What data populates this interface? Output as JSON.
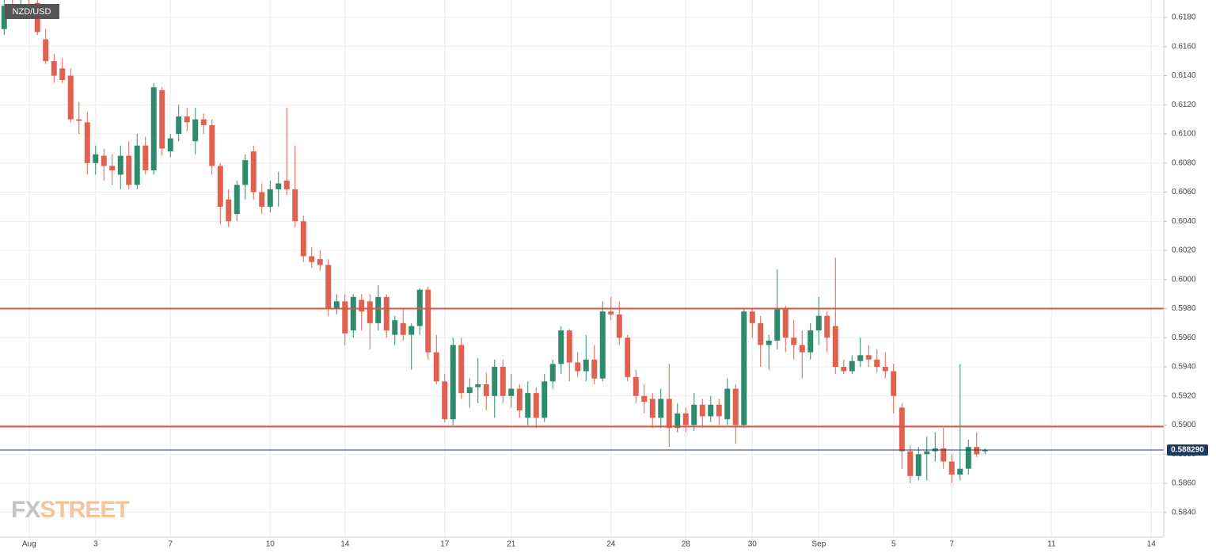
{
  "chart_data": {
    "type": "candlestick",
    "title": "NZD/USD",
    "watermark": [
      "FX",
      "STREET"
    ],
    "up_color": "#2e8b6e",
    "down_color": "#e0614f",
    "grid": true,
    "ylim": [
      0.5823,
      0.6192
    ],
    "yticks": [
      {
        "value": 0.584,
        "label": "0.5840"
      },
      {
        "value": 0.586,
        "label": "0.5860"
      },
      {
        "value": 0.588,
        "label": "0.5880"
      },
      {
        "value": 0.59,
        "label": "0.5900"
      },
      {
        "value": 0.592,
        "label": "0.5920"
      },
      {
        "value": 0.594,
        "label": "0.5940"
      },
      {
        "value": 0.596,
        "label": "0.5960"
      },
      {
        "value": 0.598,
        "label": "0.5980"
      },
      {
        "value": 0.6,
        "label": "0.6000"
      },
      {
        "value": 0.602,
        "label": "0.6020"
      },
      {
        "value": 0.604,
        "label": "0.6040"
      },
      {
        "value": 0.606,
        "label": "0.6060"
      },
      {
        "value": 0.608,
        "label": "0.6080"
      },
      {
        "value": 0.61,
        "label": "0.6100"
      },
      {
        "value": 0.612,
        "label": "0.6120"
      },
      {
        "value": 0.614,
        "label": "0.6140"
      },
      {
        "value": 0.616,
        "label": "0.6160"
      },
      {
        "value": 0.618,
        "label": "0.6180"
      }
    ],
    "hlines": [
      {
        "value": 0.598,
        "color": "#d9544a"
      },
      {
        "value": 0.5899,
        "color": "#d9544a"
      }
    ],
    "last_price": {
      "value": 0.58829,
      "label": "0.588290",
      "color": "#1c3a5e"
    },
    "categories": [
      null,
      null,
      null,
      "Aug",
      null,
      null,
      null,
      null,
      null,
      null,
      null,
      "3",
      null,
      null,
      null,
      null,
      null,
      null,
      null,
      null,
      "7",
      null,
      null,
      null,
      null,
      null,
      null,
      null,
      null,
      null,
      null,
      null,
      "10",
      null,
      null,
      null,
      null,
      null,
      null,
      null,
      null,
      "14",
      null,
      null,
      null,
      null,
      null,
      null,
      null,
      null,
      null,
      null,
      null,
      "17",
      null,
      null,
      null,
      null,
      null,
      null,
      null,
      "21",
      null,
      null,
      null,
      null,
      null,
      null,
      null,
      null,
      null,
      null,
      null,
      "24",
      null,
      null,
      null,
      null,
      null,
      null,
      null,
      null,
      "28",
      null,
      null,
      null,
      null,
      null,
      null,
      null,
      "30",
      null,
      null,
      null,
      null,
      null,
      null,
      null,
      "Sep",
      null,
      null,
      null,
      null,
      null,
      null,
      null,
      null,
      "5",
      null,
      null,
      null,
      null,
      null,
      null,
      "7",
      null,
      null,
      null,
      null,
      null,
      null,
      null,
      null,
      null,
      null,
      null,
      "11",
      null,
      null,
      null,
      null,
      null,
      null,
      null,
      null,
      null,
      null,
      null,
      "14",
      null
    ],
    "open": [
      0.6172,
      0.6188,
      0.6186,
      0.6189,
      0.619,
      0.6165,
      0.615,
      0.6145,
      0.614,
      0.611,
      0.6108,
      0.608,
      0.6085,
      0.6078,
      0.6072,
      0.6085,
      0.6065,
      0.6092,
      0.6075,
      0.613,
      0.6088,
      0.61,
      0.6112,
      0.6095,
      0.611,
      0.6106,
      0.6078,
      0.6055,
      0.6045,
      0.6065,
      0.6088,
      0.606,
      0.605,
      0.6062,
      0.6068,
      0.6062,
      0.604,
      0.6016,
      0.6014,
      0.601,
      0.598,
      0.5985,
      0.5965,
      0.5986,
      0.5985,
      0.597,
      0.5988,
      0.5962,
      0.597,
      0.5962,
      0.5968,
      0.5993,
      0.595,
      0.593,
      0.5904,
      0.5955,
      0.5922,
      0.5926,
      0.5928,
      0.592,
      0.594,
      0.592,
      0.5925,
      0.5905,
      0.5922,
      0.5905,
      0.593,
      0.5942,
      0.5965,
      0.5943,
      0.5937,
      0.5945,
      0.5932,
      0.5978,
      0.5976,
      0.596,
      0.5933,
      0.592,
      0.5918,
      0.5905,
      0.5918,
      0.5898,
      0.5908,
      0.59,
      0.5914,
      0.5906,
      0.5914,
      0.5904,
      0.5925,
      0.59,
      0.5978,
      0.597,
      0.5955,
      0.5958,
      0.598,
      0.596,
      0.5955,
      0.595,
      0.5965,
      0.5975,
      0.5968,
      0.594,
      0.5937,
      0.5944,
      0.5948,
      0.5945,
      0.594,
      0.5937,
      0.5912,
      0.5882,
      0.5865,
      0.588,
      0.5882,
      0.5884,
      0.5875,
      0.5866,
      0.587,
      0.5885,
      0.5882,
      null,
      null,
      null,
      null,
      null,
      null,
      null,
      null,
      null,
      null,
      null,
      null,
      null,
      null,
      null,
      null,
      null,
      null,
      null,
      null,
      null
    ],
    "high": [
      0.6192,
      0.6192,
      0.6192,
      0.6192,
      0.6192,
      0.6172,
      0.6155,
      0.6152,
      0.6145,
      0.6122,
      0.6115,
      0.6092,
      0.609,
      0.6086,
      0.6092,
      0.6095,
      0.61,
      0.6098,
      0.6135,
      0.6132,
      0.61,
      0.612,
      0.6118,
      0.6118,
      0.6114,
      0.611,
      0.608,
      0.6062,
      0.6068,
      0.6086,
      0.6092,
      0.6066,
      0.6068,
      0.6074,
      0.6118,
      0.6092,
      0.6044,
      0.6022,
      0.602,
      0.6014,
      0.599,
      0.599,
      0.599,
      0.599,
      0.599,
      0.5996,
      0.599,
      0.5975,
      0.598,
      0.597,
      0.5994,
      0.5995,
      0.5962,
      0.5935,
      0.596,
      0.596,
      0.5932,
      0.5946,
      0.5936,
      0.5945,
      0.5945,
      0.5935,
      0.5928,
      0.593,
      0.5926,
      0.5935,
      0.5945,
      0.5968,
      0.5966,
      0.595,
      0.5962,
      0.5955,
      0.5985,
      0.5988,
      0.5985,
      0.5962,
      0.5938,
      0.5928,
      0.5922,
      0.5925,
      0.5942,
      0.5915,
      0.5912,
      0.5922,
      0.5918,
      0.592,
      0.5918,
      0.5932,
      0.5928,
      0.598,
      0.598,
      0.5975,
      0.5962,
      0.6007,
      0.5982,
      0.5972,
      0.5965,
      0.597,
      0.5988,
      0.5978,
      0.6015,
      0.5945,
      0.5948,
      0.596,
      0.5955,
      0.5952,
      0.595,
      0.5942,
      0.5915,
      0.5886,
      0.5885,
      0.5892,
      0.5895,
      0.5898,
      0.588,
      0.5942,
      0.589,
      0.5895,
      0.5884,
      null,
      null,
      null,
      null,
      null,
      null,
      null,
      null,
      null,
      null,
      null,
      null,
      null,
      null,
      null,
      null,
      null,
      null,
      null,
      null,
      null
    ],
    "low": [
      0.6168,
      0.6183,
      0.6182,
      0.6184,
      0.6168,
      0.6148,
      0.6135,
      0.6135,
      0.6108,
      0.61,
      0.6072,
      0.6072,
      0.6068,
      0.6065,
      0.6062,
      0.6062,
      0.6062,
      0.6072,
      0.6072,
      0.6085,
      0.6084,
      0.6095,
      0.6102,
      0.6086,
      0.61,
      0.6072,
      0.6038,
      0.6036,
      0.604,
      0.6055,
      0.6055,
      0.6045,
      0.6046,
      0.605,
      0.6058,
      0.6036,
      0.6012,
      0.6008,
      0.6006,
      0.5975,
      0.5976,
      0.5955,
      0.596,
      0.5965,
      0.5952,
      0.5965,
      0.596,
      0.5955,
      0.5958,
      0.5938,
      0.5962,
      0.5945,
      0.5928,
      0.5902,
      0.59,
      0.5918,
      0.5912,
      0.5915,
      0.591,
      0.5905,
      0.5915,
      0.5912,
      0.5905,
      0.59,
      0.5898,
      0.5902,
      0.5925,
      0.5935,
      0.593,
      0.5933,
      0.593,
      0.5928,
      0.593,
      0.5972,
      0.5955,
      0.593,
      0.5915,
      0.5908,
      0.5898,
      0.5898,
      0.5885,
      0.5895,
      0.5895,
      0.5896,
      0.5898,
      0.5902,
      0.59,
      0.59,
      0.5887,
      0.5898,
      0.596,
      0.594,
      0.5938,
      0.5952,
      0.595,
      0.5945,
      0.5932,
      0.5945,
      0.5955,
      0.595,
      0.5935,
      0.5935,
      0.5935,
      0.594,
      0.594,
      0.5936,
      0.5932,
      0.5908,
      0.587,
      0.586,
      0.5862,
      0.5862,
      0.5875,
      0.587,
      0.586,
      0.5862,
      0.5866,
      0.5878,
      0.588,
      null,
      null,
      null,
      null,
      null,
      null,
      null,
      null,
      null,
      null,
      null,
      null,
      null,
      null,
      null,
      null,
      null,
      null,
      null,
      null,
      null
    ],
    "close": [
      0.6188,
      0.6186,
      0.6189,
      0.6188,
      0.617,
      0.615,
      0.614,
      0.6137,
      0.611,
      0.6109,
      0.608,
      0.6086,
      0.6078,
      0.6075,
      0.6085,
      0.6065,
      0.6092,
      0.6075,
      0.6132,
      0.609,
      0.6097,
      0.6112,
      0.6108,
      0.611,
      0.6106,
      0.6078,
      0.605,
      0.604,
      0.6065,
      0.6082,
      0.606,
      0.605,
      0.6062,
      0.6066,
      0.6062,
      0.604,
      0.6016,
      0.6012,
      0.601,
      0.598,
      0.5985,
      0.5963,
      0.5988,
      0.5978,
      0.597,
      0.5988,
      0.5965,
      0.5972,
      0.5962,
      0.5968,
      0.5993,
      0.595,
      0.593,
      0.5904,
      0.5955,
      0.5922,
      0.5926,
      0.5928,
      0.592,
      0.594,
      0.592,
      0.5925,
      0.591,
      0.5922,
      0.5905,
      0.593,
      0.5942,
      0.5965,
      0.5943,
      0.5937,
      0.5945,
      0.5932,
      0.5978,
      0.5976,
      0.596,
      0.5933,
      0.592,
      0.5916,
      0.5905,
      0.5918,
      0.5898,
      0.5908,
      0.59,
      0.5914,
      0.5906,
      0.5914,
      0.5906,
      0.5925,
      0.59,
      0.5978,
      0.597,
      0.5955,
      0.5958,
      0.598,
      0.596,
      0.5955,
      0.595,
      0.5965,
      0.5975,
      0.596,
      0.594,
      0.5937,
      0.5944,
      0.5948,
      0.5945,
      0.594,
      0.5937,
      0.592,
      0.5882,
      0.5865,
      0.588,
      0.5882,
      0.5884,
      0.5875,
      0.5866,
      0.587,
      0.5885,
      0.588,
      0.58829,
      null,
      null,
      null,
      null,
      null,
      null,
      null,
      null,
      null,
      null,
      null,
      null,
      null,
      null,
      null,
      null,
      null,
      null,
      null,
      null,
      null
    ]
  }
}
